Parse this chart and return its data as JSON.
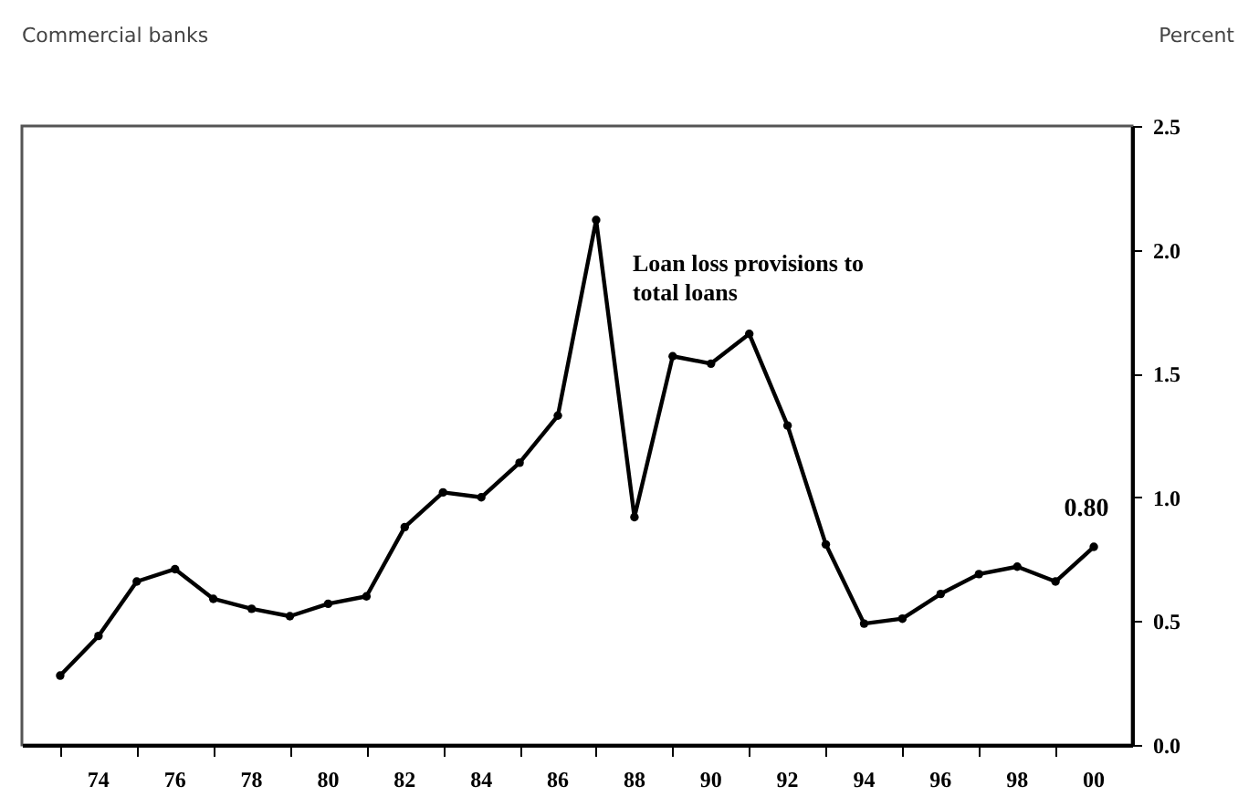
{
  "chart_data": {
    "type": "line",
    "title": "Commercial banks",
    "ylabel": "Percent",
    "x": [
      1973,
      1974,
      1975,
      1976,
      1977,
      1978,
      1979,
      1980,
      1981,
      1982,
      1983,
      1984,
      1985,
      1986,
      1987,
      1988,
      1989,
      1990,
      1991,
      1992,
      1993,
      1994,
      1995,
      1996,
      1997,
      1998,
      1999,
      2000
    ],
    "series": [
      {
        "name": "Loan loss provisions to total loans",
        "color": "#000000",
        "values": [
          0.28,
          0.44,
          0.66,
          0.71,
          0.59,
          0.55,
          0.52,
          0.57,
          0.6,
          0.88,
          1.02,
          1.0,
          1.14,
          1.33,
          2.12,
          0.92,
          1.57,
          1.54,
          1.66,
          1.29,
          0.81,
          0.49,
          0.51,
          0.61,
          0.69,
          0.72,
          0.66,
          0.8
        ],
        "value_labels": [
          null,
          null,
          null,
          null,
          null,
          null,
          null,
          null,
          null,
          null,
          null,
          null,
          null,
          null,
          null,
          null,
          null,
          null,
          null,
          null,
          null,
          null,
          null,
          null,
          null,
          null,
          null,
          "0.80"
        ]
      }
    ],
    "xlim": [
      1972,
      2001
    ],
    "xticks": [
      {
        "value": 1973,
        "label": null
      },
      {
        "value": 1974,
        "label": "74"
      },
      {
        "value": 1975,
        "label": null
      },
      {
        "value": 1976,
        "label": "76"
      },
      {
        "value": 1977,
        "label": null
      },
      {
        "value": 1978,
        "label": "78"
      },
      {
        "value": 1979,
        "label": null
      },
      {
        "value": 1980,
        "label": "80"
      },
      {
        "value": 1981,
        "label": null
      },
      {
        "value": 1982,
        "label": "82"
      },
      {
        "value": 1983,
        "label": null
      },
      {
        "value": 1984,
        "label": "84"
      },
      {
        "value": 1985,
        "label": null
      },
      {
        "value": 1986,
        "label": "86"
      },
      {
        "value": 1987,
        "label": null
      },
      {
        "value": 1988,
        "label": "88"
      },
      {
        "value": 1989,
        "label": null
      },
      {
        "value": 1990,
        "label": "90"
      },
      {
        "value": 1991,
        "label": null
      },
      {
        "value": 1992,
        "label": "92"
      },
      {
        "value": 1993,
        "label": null
      },
      {
        "value": 1994,
        "label": "94"
      },
      {
        "value": 1995,
        "label": null
      },
      {
        "value": 1996,
        "label": "96"
      },
      {
        "value": 1997,
        "label": null
      },
      {
        "value": 1998,
        "label": "98"
      },
      {
        "value": 1999,
        "label": null
      },
      {
        "value": 2000,
        "label": "00"
      }
    ],
    "ylim": [
      0,
      2.5
    ],
    "yticks": [
      {
        "value": 0,
        "label": "0.0"
      },
      {
        "value": 0.5,
        "label": "0.5"
      },
      {
        "value": 1,
        "label": "1.0"
      },
      {
        "value": 1.5,
        "label": "1.5"
      },
      {
        "value": 2,
        "label": "2.0"
      },
      {
        "value": 2.5,
        "label": "2.5"
      }
    ],
    "grid": false,
    "marker": "circle",
    "line_style": "solid"
  }
}
